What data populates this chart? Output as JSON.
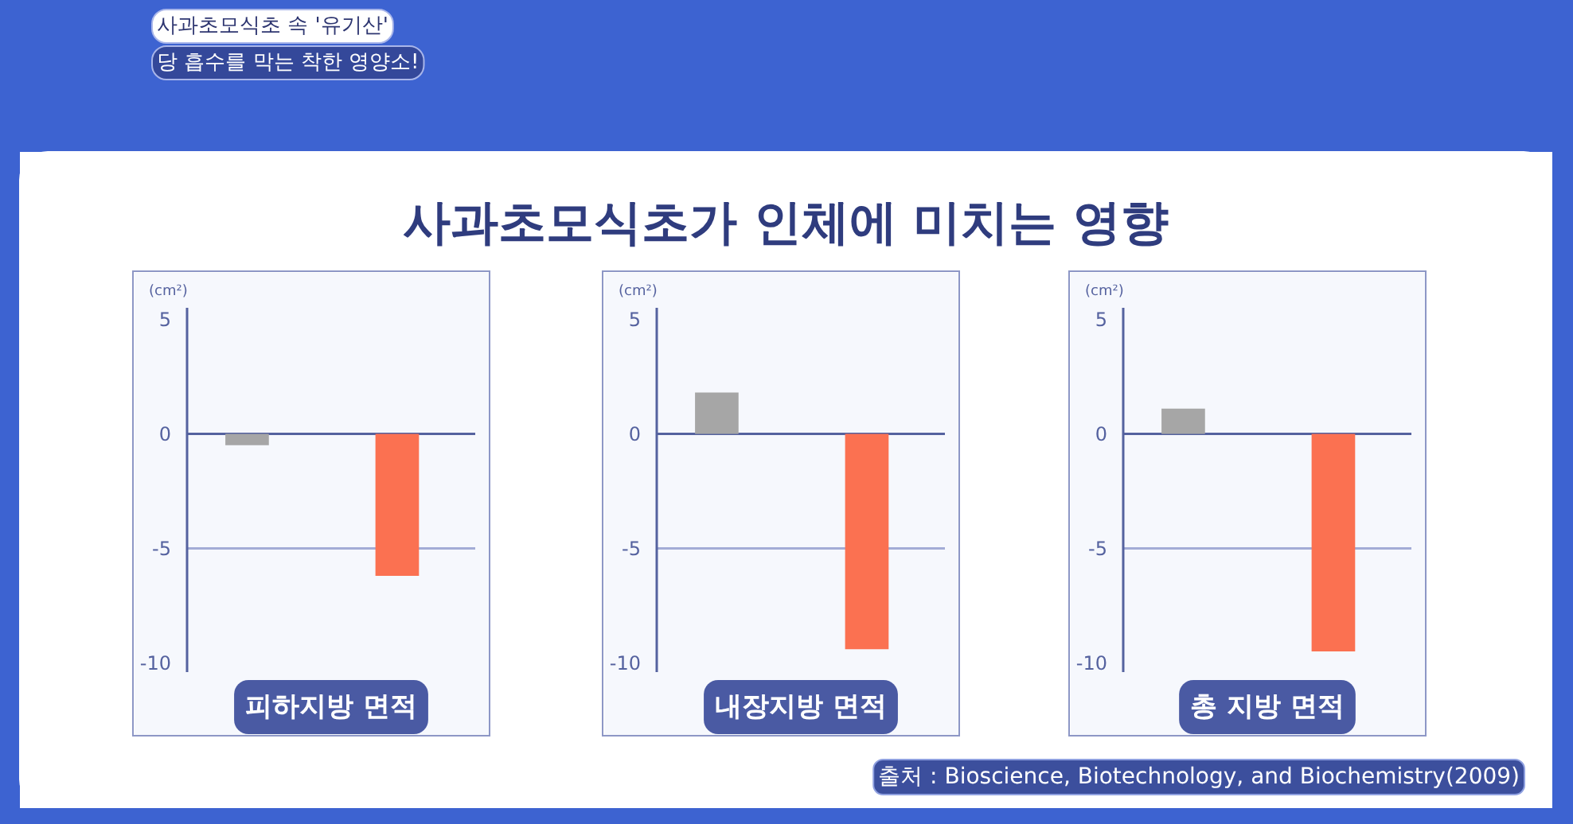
{
  "chart_data": [
    {
      "type": "bar",
      "title": "사과초모식초가 인체에 미치는 영향",
      "annotations": [
        "사과초모식초 속 '유기산'",
        "당 흡수를 막는 착한 영양소!"
      ],
      "categories": [
        null,
        null
      ],
      "values": [
        -0.5,
        -6.2
      ],
      "colors": [
        "#a6a6a6",
        "#fb7151"
      ],
      "xlabel": "피하지방 면적",
      "ylabel": "(cm²)",
      "ylim": [
        -10.4,
        5.5
      ],
      "yticks": [
        5,
        0,
        -5,
        -10
      ],
      "ref_lines": [
        {
          "axis": "y",
          "value": 0,
          "color": "#55629f"
        },
        {
          "axis": "y",
          "value": -5,
          "color": "#a3acd6"
        }
      ]
    },
    {
      "type": "bar",
      "categories": [
        null,
        null
      ],
      "values": [
        1.8,
        -9.4
      ],
      "colors": [
        "#a6a6a6",
        "#fb7151"
      ],
      "xlabel": "내장지방 면적",
      "ylabel": "(cm²)",
      "ylim": [
        -10.4,
        5.5
      ],
      "yticks": [
        5,
        0,
        -5,
        -10
      ],
      "ref_lines": [
        {
          "axis": "y",
          "value": 0,
          "color": "#55629f"
        },
        {
          "axis": "y",
          "value": -5,
          "color": "#a3acd6"
        }
      ]
    },
    {
      "type": "bar",
      "categories": [
        null,
        null
      ],
      "values": [
        1.1,
        -9.5
      ],
      "colors": [
        "#a6a6a6",
        "#fb7151"
      ],
      "xlabel": "총 지방 면적",
      "ylabel": "(cm²)",
      "ylim": [
        -10.4,
        5.5
      ],
      "yticks": [
        5,
        0,
        -5,
        -10
      ],
      "ref_lines": [
        {
          "axis": "y",
          "value": 0,
          "color": "#55629f"
        },
        {
          "axis": "y",
          "value": -5,
          "color": "#a3acd6"
        }
      ],
      "annotations": [
        "출처 : Bioscience, Biotechnology, and Biochemistry(2009)"
      ]
    }
  ]
}
